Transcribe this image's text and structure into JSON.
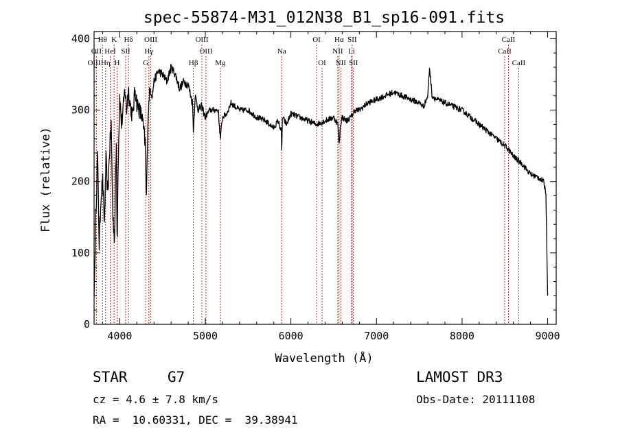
{
  "chart_data": {
    "type": "line",
    "title": "spec-55874-M31_012N38_B1_sp16-091.fits",
    "xlabel": "Wavelength (Å)",
    "ylabel": "Flux (relative)",
    "xlim": [
      3700,
      9100
    ],
    "ylim": [
      0,
      410
    ],
    "xticks": [
      4000,
      5000,
      6000,
      7000,
      8000,
      9000
    ],
    "yticks": [
      0,
      100,
      200,
      300,
      400
    ],
    "grid": false,
    "line_color": "#000000",
    "marker_color": "#b22222",
    "spectrum": {
      "name": "",
      "x": [
        3700,
        3720,
        3740,
        3760,
        3780,
        3800,
        3820,
        3840,
        3860,
        3880,
        3900,
        3920,
        3940,
        3950,
        3960,
        3970,
        3980,
        4000,
        4020,
        4040,
        4060,
        4080,
        4100,
        4120,
        4150,
        4180,
        4200,
        4230,
        4260,
        4280,
        4300,
        4310,
        4330,
        4350,
        4380,
        4400,
        4450,
        4500,
        4550,
        4600,
        4650,
        4700,
        4750,
        4800,
        4850,
        4861,
        4880,
        4920,
        4960,
        5000,
        5050,
        5100,
        5150,
        5175,
        5200,
        5250,
        5300,
        5400,
        5500,
        5600,
        5700,
        5800,
        5850,
        5890,
        5893,
        5900,
        5950,
        6000,
        6100,
        6200,
        6300,
        6400,
        6500,
        6550,
        6563,
        6580,
        6600,
        6650,
        6700,
        6750,
        6800,
        6900,
        7000,
        7100,
        7200,
        7300,
        7400,
        7500,
        7550,
        7600,
        7620,
        7650,
        7700,
        7800,
        7900,
        8000,
        8100,
        8200,
        8300,
        8400,
        8500,
        8542,
        8600,
        8700,
        8800,
        8900,
        8950,
        8980,
        9000
      ],
      "y": [
        40,
        150,
        240,
        110,
        180,
        200,
        140,
        230,
        180,
        240,
        280,
        150,
        120,
        200,
        250,
        110,
        220,
        320,
        280,
        300,
        330,
        300,
        330,
        310,
        290,
        330,
        310,
        300,
        290,
        270,
        250,
        170,
        290,
        330,
        320,
        340,
        355,
        350,
        340,
        360,
        350,
        330,
        340,
        335,
        310,
        270,
        320,
        300,
        305,
        290,
        300,
        300,
        300,
        260,
        290,
        295,
        310,
        300,
        300,
        290,
        285,
        275,
        285,
        270,
        230,
        290,
        280,
        295,
        290,
        285,
        280,
        285,
        290,
        280,
        250,
        280,
        290,
        285,
        290,
        300,
        300,
        310,
        315,
        320,
        325,
        320,
        315,
        310,
        305,
        320,
        360,
        320,
        315,
        310,
        305,
        300,
        290,
        280,
        270,
        260,
        250,
        245,
        235,
        225,
        210,
        205,
        200,
        185,
        40
      ]
    },
    "lines": [
      {
        "name": "Hθ",
        "wl": 3798,
        "row": 0
      },
      {
        "name": "K",
        "wl": 3934,
        "row": 0
      },
      {
        "name": "Hδ",
        "wl": 4102,
        "row": 0
      },
      {
        "name": "OIII",
        "wl": 4363,
        "row": 0
      },
      {
        "name": "OIII",
        "wl": 4959,
        "row": 0
      },
      {
        "name": "OI",
        "wl": 6300,
        "row": 0
      },
      {
        "name": "Hα",
        "wl": 6563,
        "row": 0
      },
      {
        "name": "SII",
        "wl": 6716,
        "row": 0
      },
      {
        "name": "CaII",
        "wl": 8542,
        "row": 0
      },
      {
        "name": "OII",
        "wl": 3727,
        "row": 1
      },
      {
        "name": "HeI",
        "wl": 3889,
        "row": 1
      },
      {
        "name": "SII",
        "wl": 4069,
        "row": 1
      },
      {
        "name": "Hγ",
        "wl": 4340,
        "row": 1
      },
      {
        "name": "OIII",
        "wl": 5007,
        "row": 1
      },
      {
        "name": "Na",
        "wl": 5893,
        "row": 1
      },
      {
        "name": "NII",
        "wl": 6548,
        "row": 1
      },
      {
        "name": "Li",
        "wl": 6708,
        "row": 1
      },
      {
        "name": "CaII",
        "wl": 8498,
        "row": 1
      },
      {
        "name": "OIII",
        "wl": 3700,
        "row": 2
      },
      {
        "name": "Hη",
        "wl": 3835,
        "row": 2
      },
      {
        "name": "H",
        "wl": 3969,
        "row": 2
      },
      {
        "name": "G",
        "wl": 4304,
        "row": 2
      },
      {
        "name": "Hβ",
        "wl": 4861,
        "row": 2
      },
      {
        "name": "Mg",
        "wl": 5175,
        "row": 2
      },
      {
        "name": "OI",
        "wl": 6364,
        "row": 2
      },
      {
        "name": "NII",
        "wl": 6583,
        "row": 2
      },
      {
        "name": "SII",
        "wl": 6731,
        "row": 2
      },
      {
        "name": "CaII",
        "wl": 8662,
        "row": 2
      }
    ]
  },
  "info": {
    "class_label": "STAR",
    "subclass": "G7",
    "cz": "cz = 4.6 ± 7.8 km/s",
    "coords": "RA =  10.60331, DEC =  39.38941",
    "survey": "LAMOST DR3",
    "obs_date": "Obs-Date: 20111108"
  }
}
